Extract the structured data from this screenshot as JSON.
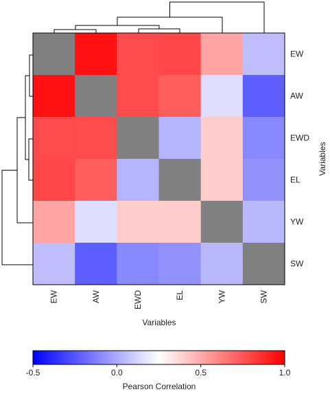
{
  "chart_data": {
    "type": "heatmap",
    "rows": [
      "EW",
      "AW",
      "EWD",
      "EL",
      "YW",
      "SW"
    ],
    "columns": [
      "EW",
      "AW",
      "EWD",
      "EL",
      "YW",
      "SW"
    ],
    "values": [
      [
        null,
        0.95,
        0.78,
        0.79,
        0.52,
        0.06
      ],
      [
        0.95,
        null,
        0.78,
        0.73,
        0.15,
        -0.22
      ],
      [
        0.78,
        0.78,
        null,
        0.03,
        0.4,
        -0.1
      ],
      [
        0.79,
        0.73,
        0.03,
        null,
        0.4,
        -0.07
      ],
      [
        0.52,
        0.15,
        0.4,
        0.4,
        null,
        0.04
      ],
      [
        0.06,
        -0.22,
        -0.1,
        -0.07,
        0.04,
        null
      ]
    ],
    "diagonal_color": "#808080",
    "xlabel": "Variables",
    "ylabel": "Variables",
    "colorbar": {
      "title": "Pearson Correlation",
      "range": [
        -0.5,
        1.0
      ],
      "ticks": [
        "-0.5",
        "0.0",
        "0.5",
        "1.0"
      ],
      "tick_values": [
        -0.5,
        0.0,
        0.5,
        1.0
      ],
      "colors": [
        "#0000ff",
        "#ffffff",
        "#ff0000"
      ],
      "stops": [
        -0.5,
        0.25,
        1.0
      ]
    },
    "dendrograms": [
      "top",
      "left"
    ],
    "grid": false
  }
}
